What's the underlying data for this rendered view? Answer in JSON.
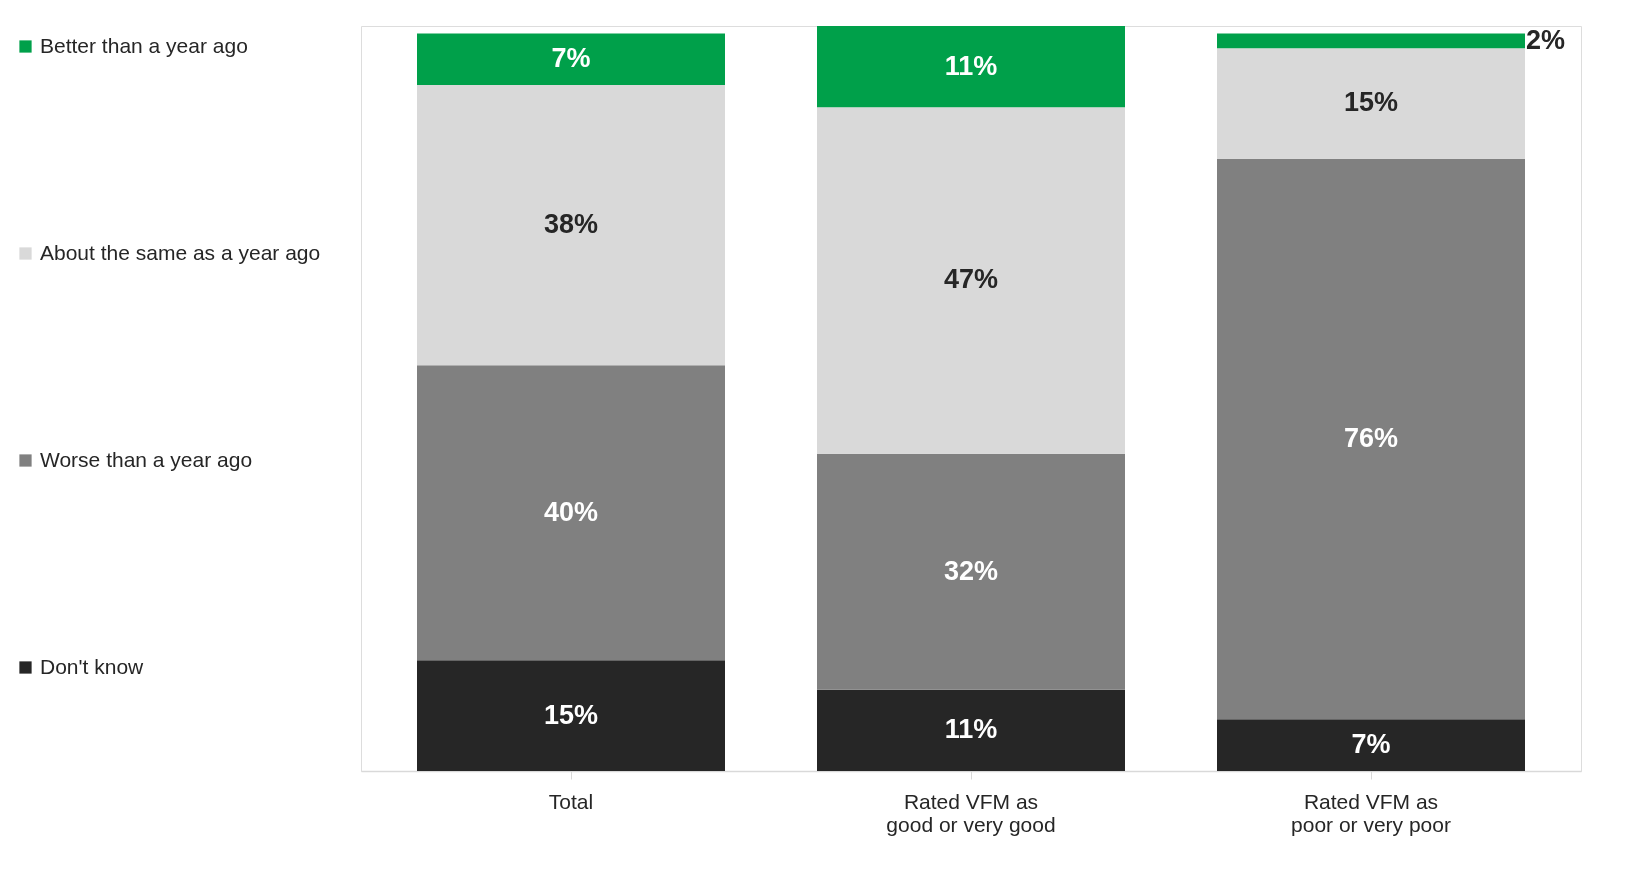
{
  "chart_data": {
    "type": "bar",
    "stacked": true,
    "data_labels": true,
    "legend": "left",
    "grid": false,
    "categories": [
      "Total",
      "Rated VFM as\ngood or very good",
      "Rated VFM as\npoor or very poor"
    ],
    "series": [
      {
        "name": "Don't know",
        "color": "#262626",
        "values": [
          15,
          11,
          7
        ],
        "value_labels": [
          "15%",
          "11%",
          "7%"
        ]
      },
      {
        "name": "Worse than a year ago",
        "color": "#808080",
        "values": [
          40,
          32,
          76
        ],
        "value_labels": [
          "40%",
          "32%",
          "76%"
        ]
      },
      {
        "name": "About the same as a year ago",
        "color": "#d9d9d9",
        "values": [
          38,
          47,
          15
        ],
        "value_labels": [
          "38%",
          "47%",
          "15%"
        ]
      },
      {
        "name": "Better than a year ago",
        "color": "#00a04a",
        "values": [
          7,
          11,
          2
        ],
        "value_labels": [
          "7%",
          "11%",
          "2%"
        ]
      }
    ]
  }
}
